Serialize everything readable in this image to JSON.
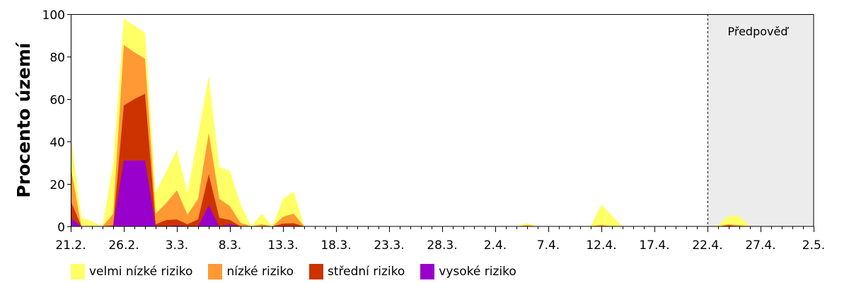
{
  "chart_data": {
    "type": "area",
    "stacked": true,
    "title": "",
    "xlabel": "",
    "ylabel": "Procento území",
    "ylim": [
      0,
      100
    ],
    "yticks": [
      0,
      20,
      40,
      60,
      80,
      100
    ],
    "x_tick_labels": [
      "21.2.",
      "26.2.",
      "3.3.",
      "8.3.",
      "13.3.",
      "18.3.",
      "23.3.",
      "28.3.",
      "2.4.",
      "7.4.",
      "12.4.",
      "17.4.",
      "22.4.",
      "27.4.",
      "2.5."
    ],
    "x_major_tick_every_days": 5,
    "x_start": "21.2.",
    "x_end": "2.5.",
    "n_days": 71,
    "grid": false,
    "legend_position": "bottom",
    "forecast_region": {
      "label": "Předpověď",
      "start_day": 60,
      "end_day": 70,
      "color": "#ececec"
    },
    "series": [
      {
        "name": "vysoké riziko",
        "color": "#9900cc",
        "cumulative": false,
        "values": [
          4,
          0,
          0,
          0,
          0,
          31,
          31,
          31,
          0,
          0,
          0.5,
          0,
          0,
          10,
          0,
          1,
          0,
          0,
          0,
          0,
          0,
          0,
          0,
          0,
          0,
          0,
          0,
          0,
          0,
          0,
          0,
          0,
          0,
          0,
          0,
          0,
          0,
          0,
          0,
          0,
          0,
          0,
          0,
          0,
          0,
          0,
          0,
          0,
          0,
          0,
          0,
          0,
          0,
          0,
          0,
          0,
          0,
          0,
          0,
          0,
          0,
          0,
          0,
          0,
          0,
          0,
          0,
          0,
          0,
          0,
          0
        ]
      },
      {
        "name": "střední riziko",
        "color": "#cc3300",
        "values": [
          8,
          0,
          0,
          0,
          0.5,
          26,
          29,
          31.5,
          1,
          3,
          2.8,
          1,
          3.3,
          14.5,
          4,
          2,
          0,
          0,
          0,
          0,
          1.3,
          1.5,
          0,
          0,
          0,
          0,
          0,
          0,
          0,
          0,
          0,
          0,
          0,
          0,
          0,
          0,
          0,
          0,
          0,
          0,
          0,
          0,
          0,
          0,
          0,
          0,
          0,
          0,
          0,
          0,
          0,
          0,
          0,
          0,
          0,
          0,
          0,
          0,
          0,
          0,
          0,
          0,
          0.5,
          0,
          0,
          0,
          0,
          0,
          0,
          0,
          0
        ]
      },
      {
        "name": "nízké riziko",
        "color": "#ff9933",
        "values": [
          16,
          0,
          0,
          0,
          5.5,
          28.5,
          22,
          16.5,
          5,
          8,
          13.7,
          4.5,
          9.7,
          19.5,
          9,
          6.5,
          1.7,
          0,
          1,
          0,
          3.2,
          4.5,
          0,
          0,
          0,
          0,
          0,
          0,
          0,
          0,
          0,
          0,
          0,
          0,
          0,
          0,
          0,
          0,
          0,
          0,
          0,
          0,
          0,
          0.5,
          0,
          0,
          0,
          0,
          0,
          0,
          0.7,
          0,
          0,
          0,
          0,
          0,
          0,
          0,
          0,
          0,
          0,
          0,
          0.5,
          0.5,
          0,
          0,
          0,
          0,
          0,
          0,
          0
        ]
      },
      {
        "name": "velmi nízké riziko",
        "color": "#ffff66",
        "values": [
          15,
          4.3,
          2.4,
          0,
          24,
          12.5,
          12.5,
          12.3,
          10,
          15,
          19,
          10.5,
          30,
          27,
          15,
          16.5,
          8.8,
          0,
          5,
          0,
          8.5,
          10.5,
          0,
          0,
          0,
          0,
          0,
          0,
          0,
          0,
          0,
          0,
          0,
          0,
          0,
          0,
          0,
          0,
          0,
          0,
          0,
          0,
          0,
          1,
          0,
          0,
          0,
          0,
          0,
          0.3,
          9.6,
          5,
          0,
          0,
          0,
          0,
          0,
          0,
          0,
          0,
          0,
          0.5,
          4,
          4.3,
          0,
          0,
          0,
          0,
          0,
          0,
          0
        ]
      }
    ]
  },
  "forecast_label": "Předpověď",
  "legend": [
    {
      "label": "velmi nízké riziko",
      "color": "#ffff66"
    },
    {
      "label": "nízké riziko",
      "color": "#ff9933"
    },
    {
      "label": "střední riziko",
      "color": "#cc3300"
    },
    {
      "label": "vysoké riziko",
      "color": "#9900cc"
    }
  ]
}
